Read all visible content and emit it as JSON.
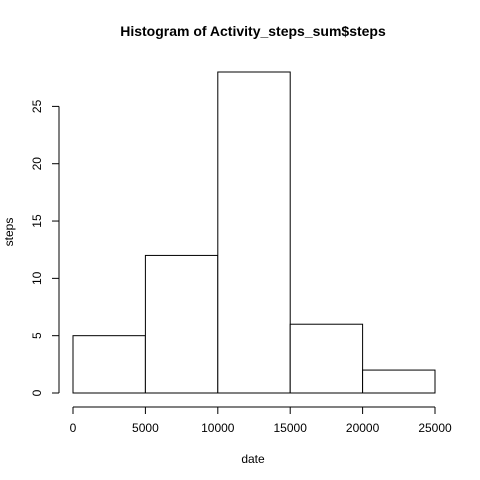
{
  "chart_data": {
    "type": "bar",
    "title": "Histogram of Activity_steps_sum$steps",
    "xlabel": "date",
    "ylabel": "steps",
    "bins": [
      {
        "start": 0,
        "end": 5000,
        "value": 5
      },
      {
        "start": 5000,
        "end": 10000,
        "value": 12
      },
      {
        "start": 10000,
        "end": 15000,
        "value": 28
      },
      {
        "start": 15000,
        "end": 20000,
        "value": 6
      },
      {
        "start": 20000,
        "end": 25000,
        "value": 2
      }
    ],
    "xlim": [
      0,
      25000
    ],
    "ylim": [
      0,
      28
    ],
    "xticks": [
      0,
      5000,
      10000,
      15000,
      20000,
      25000
    ],
    "yticks": [
      0,
      5,
      10,
      15,
      20,
      25
    ],
    "grid": false,
    "legend": "none",
    "bar_fill": "#ffffff",
    "bar_stroke": "#000000"
  }
}
